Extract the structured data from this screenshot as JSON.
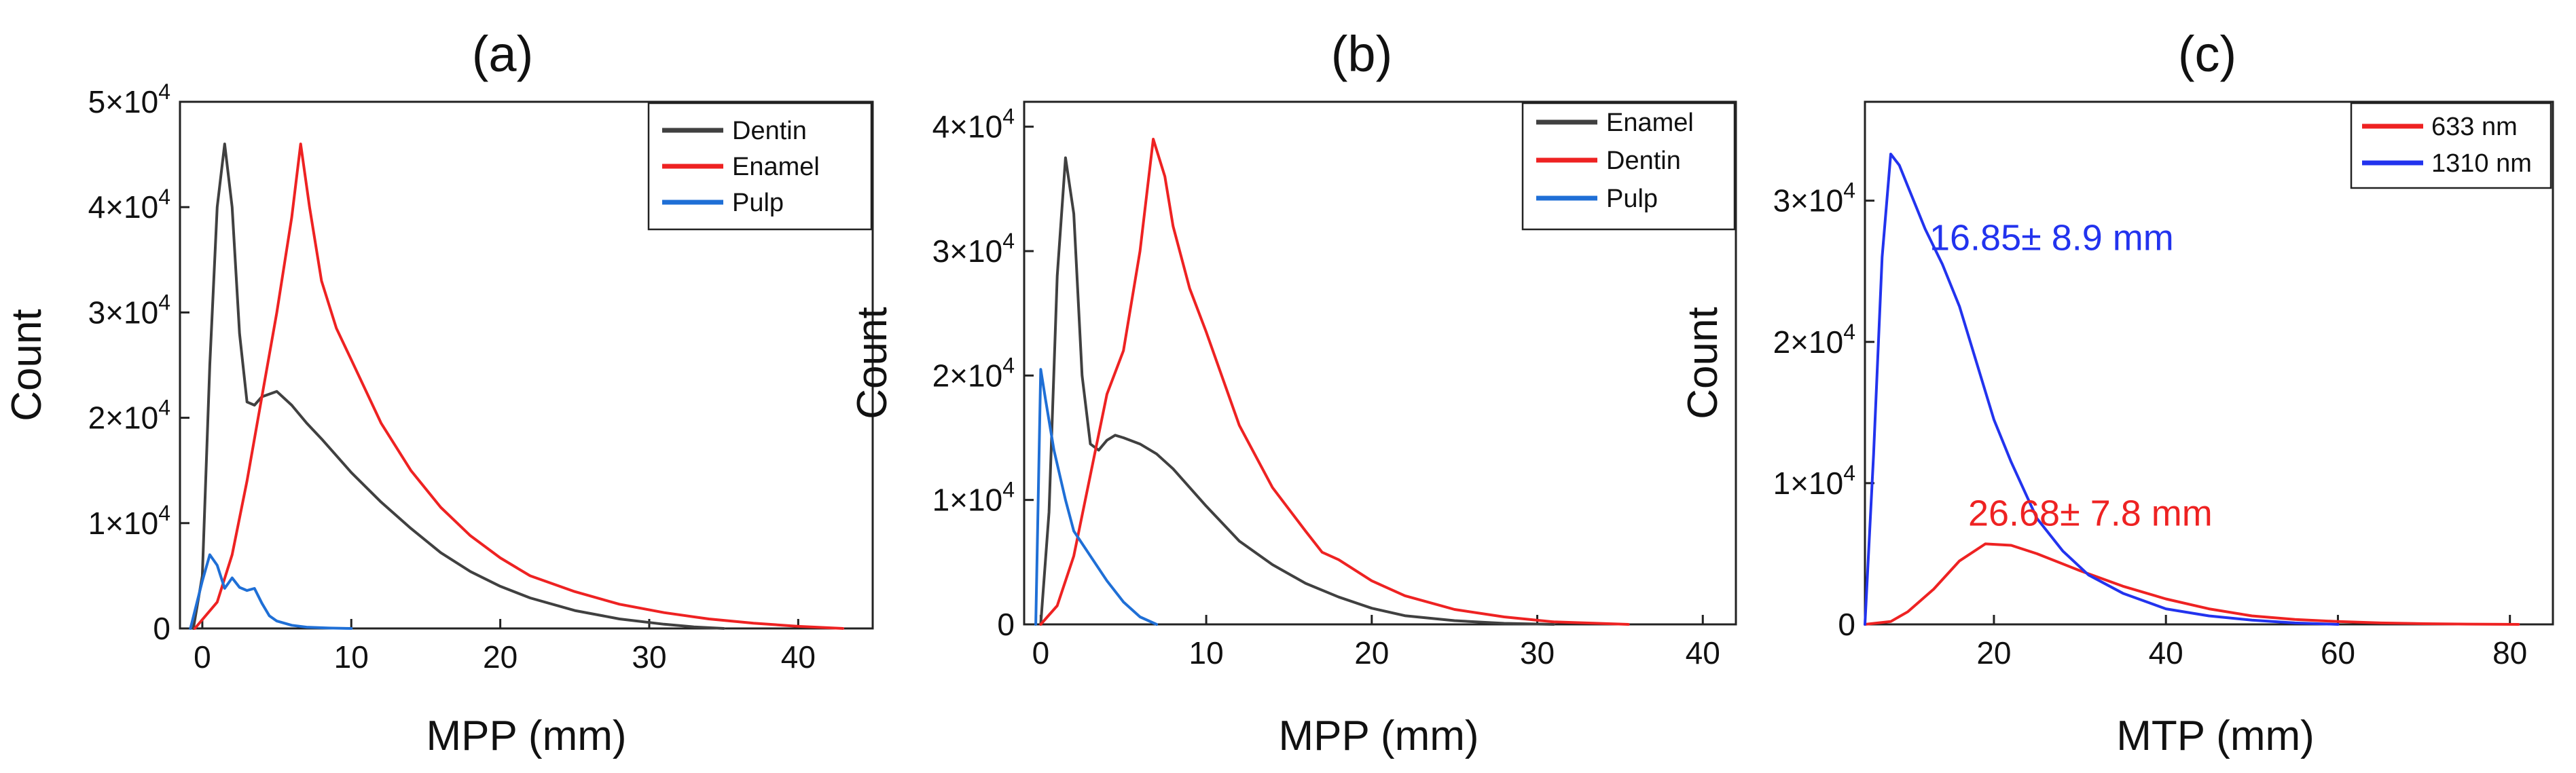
{
  "colors": {
    "gray": "#404040",
    "red": "#ee2222",
    "blue": "#1f6fd6",
    "blue_c": "#2233ee"
  },
  "chart_data": [
    {
      "type": "line",
      "panel": "(a)",
      "xlabel": "MPP (mm)",
      "ylabel": "Count",
      "xlim": [
        -1.5,
        45
      ],
      "ylim": [
        0,
        50000
      ],
      "xticks": [
        0,
        10,
        20,
        30,
        40
      ],
      "yticks": [
        0,
        10000,
        20000,
        30000,
        40000,
        50000
      ],
      "ytick_mantissa": [
        "0",
        "1×10",
        "2×10",
        "3×10",
        "4×10",
        "5×10"
      ],
      "ytick_exponent": [
        "",
        "4",
        "4",
        "4",
        "4",
        "4"
      ],
      "legend_position": "top-right",
      "series": [
        {
          "name": "Dentin",
          "color": "#404040",
          "x": [
            -0.6,
            0,
            0.5,
            1.0,
            1.5,
            2.0,
            2.5,
            3.0,
            3.5,
            4.0,
            5.0,
            6.0,
            7.0,
            8.0,
            10,
            12,
            14,
            16,
            18,
            20,
            22,
            25,
            28,
            31,
            33,
            35
          ],
          "y": [
            0,
            5000,
            25000,
            40000,
            46000,
            40000,
            28000,
            21500,
            21200,
            22000,
            22500,
            21200,
            19500,
            18000,
            14800,
            12000,
            9500,
            7200,
            5400,
            4000,
            2900,
            1700,
            900,
            400,
            150,
            0
          ]
        },
        {
          "name": "Enamel",
          "color": "#ee2222",
          "x": [
            -0.5,
            1,
            2,
            3,
            4,
            5,
            6,
            6.6,
            7.2,
            8,
            9,
            10,
            12,
            14,
            16,
            18,
            20,
            22,
            25,
            28,
            31,
            34,
            37,
            40,
            43
          ],
          "y": [
            0,
            2500,
            7000,
            14000,
            22000,
            30000,
            39000,
            46000,
            40000,
            33000,
            28500,
            25500,
            19500,
            15000,
            11500,
            8800,
            6700,
            5000,
            3500,
            2300,
            1500,
            900,
            500,
            200,
            0
          ]
        },
        {
          "name": "Pulp",
          "color": "#1f6fd6",
          "x": [
            -0.8,
            0,
            0.5,
            1.0,
            1.5,
            2.0,
            2.5,
            3.0,
            3.5,
            4.0,
            4.5,
            5.0,
            6.0,
            7.0,
            8.5,
            10
          ],
          "y": [
            0,
            4500,
            7000,
            6000,
            3800,
            4800,
            3900,
            3600,
            3800,
            2400,
            1200,
            700,
            300,
            120,
            40,
            0
          ]
        }
      ]
    },
    {
      "type": "line",
      "panel": "(b)",
      "xlabel": "MPP (mm)",
      "ylabel": "Count",
      "xlim": [
        -1.0,
        42
      ],
      "ylim": [
        0,
        42000
      ],
      "xticks": [
        0,
        10,
        20,
        30,
        40
      ],
      "yticks": [
        0,
        10000,
        20000,
        30000,
        40000
      ],
      "ytick_mantissa": [
        "0",
        "1×10",
        "2×10",
        "3×10",
        "4×10"
      ],
      "ytick_exponent": [
        "",
        "4",
        "4",
        "4",
        "4"
      ],
      "legend_position": "top-right",
      "series": [
        {
          "name": "Enamel",
          "color": "#404040",
          "x": [
            0,
            0.5,
            1.0,
            1.5,
            2.0,
            2.5,
            3.0,
            3.5,
            4.0,
            4.5,
            5,
            6,
            7,
            8,
            10,
            12,
            14,
            16,
            18,
            20,
            22,
            25,
            28,
            31
          ],
          "y": [
            0,
            9000,
            28000,
            37500,
            33000,
            20000,
            14500,
            14000,
            14800,
            15200,
            15000,
            14500,
            13700,
            12500,
            9500,
            6700,
            4800,
            3300,
            2200,
            1300,
            700,
            300,
            80,
            0
          ]
        },
        {
          "name": "Dentin",
          "color": "#ee2222",
          "x": [
            0,
            1,
            2,
            3,
            4,
            5,
            6,
            6.8,
            7.5,
            8,
            9,
            10,
            12,
            14,
            16,
            17,
            18,
            20,
            22,
            25,
            28,
            31,
            35.5
          ],
          "y": [
            0,
            1500,
            5500,
            12000,
            18500,
            22000,
            30000,
            39000,
            36000,
            32000,
            27000,
            23500,
            16000,
            11000,
            7500,
            5800,
            5200,
            3500,
            2300,
            1200,
            600,
            200,
            0
          ]
        },
        {
          "name": "Pulp",
          "color": "#1f6fd6",
          "x": [
            -0.3,
            0,
            0.3,
            0.8,
            1.5,
            2.0,
            3.0,
            4.0,
            5.0,
            6.0,
            7.0
          ],
          "y": [
            0,
            20500,
            18000,
            14000,
            10000,
            7500,
            5500,
            3500,
            1800,
            600,
            0
          ]
        }
      ]
    },
    {
      "type": "line",
      "panel": "(c)",
      "xlabel": "MTP (mm)",
      "ylabel": "Count",
      "xlim": [
        5,
        85
      ],
      "ylim": [
        0,
        37000
      ],
      "xticks": [
        20,
        40,
        60,
        80
      ],
      "yticks": [
        0,
        10000,
        20000,
        30000
      ],
      "ytick_mantissa": [
        "0",
        "1×10",
        "2×10",
        "3×10"
      ],
      "ytick_exponent": [
        "",
        "4",
        "4",
        "4"
      ],
      "legend_position": "top-right",
      "series": [
        {
          "name": "633 nm",
          "color": "#ee2222",
          "x": [
            5,
            8,
            10,
            13,
            16,
            19,
            22,
            25,
            30,
            35,
            40,
            45,
            50,
            55,
            60,
            65,
            70,
            75,
            81
          ],
          "y": [
            0,
            200,
            900,
            2500,
            4500,
            5700,
            5600,
            5000,
            3800,
            2700,
            1800,
            1100,
            600,
            350,
            200,
            100,
            50,
            20,
            0
          ]
        },
        {
          "name": "1310 nm",
          "color": "#2233ee",
          "x": [
            5,
            6,
            7,
            8,
            9,
            10,
            11,
            12,
            14,
            16,
            18,
            20,
            22,
            25,
            28,
            31,
            35,
            40,
            45,
            50,
            55,
            60
          ],
          "y": [
            0,
            12000,
            26000,
            33300,
            32500,
            31000,
            29500,
            28000,
            25500,
            22500,
            18500,
            14500,
            11500,
            7500,
            5200,
            3500,
            2200,
            1100,
            600,
            300,
            100,
            0
          ]
        }
      ],
      "annotations": [
        {
          "text": "16.85± 8.9 mm",
          "x": 12.5,
          "y": 26500,
          "color": "#2233ee"
        },
        {
          "text": "26.68± 7.8 mm",
          "x": 17,
          "y": 7000,
          "color": "#ee2222"
        }
      ]
    }
  ]
}
